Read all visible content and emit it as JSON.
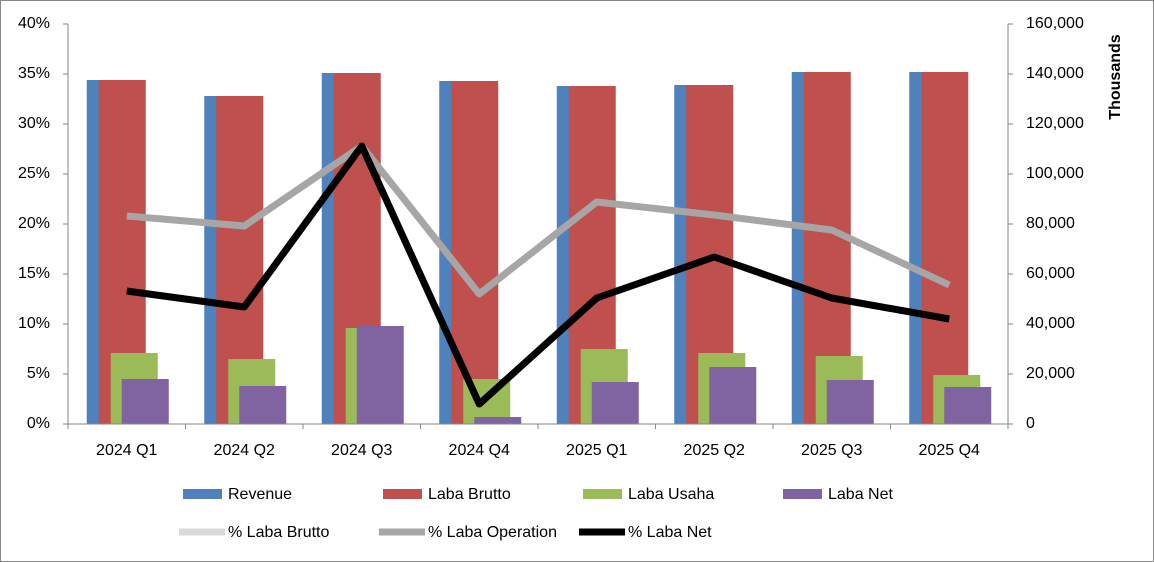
{
  "chart_data": {
    "type": "bar",
    "categories": [
      "2024 Q1",
      "2024 Q2",
      "2024 Q3",
      "2024 Q4",
      "2025 Q1",
      "2025 Q2",
      "2025 Q3",
      "2025 Q4"
    ],
    "series": [
      {
        "name": "Revenue",
        "type": "bar",
        "axis": "y2",
        "color": "#4f81bd",
        "values": [
          137600,
          131200,
          140400,
          137200,
          135200,
          135600,
          140800,
          140800
        ]
      },
      {
        "name": "Laba Brutto",
        "type": "bar",
        "axis": "y2",
        "color": "#c0504d",
        "values": [
          137600,
          131200,
          140400,
          137200,
          135200,
          135600,
          140800,
          140800
        ]
      },
      {
        "name": "Laba Usaha",
        "type": "bar",
        "axis": "y2",
        "color": "#9bbb59",
        "values": [
          28400,
          26000,
          38400,
          18000,
          30000,
          28400,
          27200,
          19600
        ]
      },
      {
        "name": "Laba Net",
        "type": "bar",
        "axis": "y2",
        "color": "#8064a2",
        "values": [
          18000,
          15200,
          39200,
          2800,
          16800,
          22800,
          17600,
          14800
        ]
      },
      {
        "name": "% Laba Brutto",
        "type": "line",
        "color": "#d9d9d9",
        "values": [
          null,
          null,
          null,
          null,
          null,
          null,
          null,
          null
        ]
      },
      {
        "name": "% Laba Operation",
        "type": "line",
        "color": "#a6a6a6",
        "values": [
          20.8,
          19.8,
          27.8,
          13.0,
          22.2,
          20.9,
          19.4,
          13.9
        ]
      },
      {
        "name": "% Laba Net",
        "type": "line",
        "color": "#000000",
        "values": [
          13.3,
          11.7,
          27.8,
          2.0,
          12.6,
          16.7,
          12.6,
          10.5
        ]
      }
    ],
    "ylim": [
      0,
      40
    ],
    "yticks": [
      {
        "value": 0,
        "label": "0%"
      },
      {
        "value": 5,
        "label": "5%"
      },
      {
        "value": 10,
        "label": "10%"
      },
      {
        "value": 15,
        "label": "15%"
      },
      {
        "value": 20,
        "label": "20%"
      },
      {
        "value": 25,
        "label": "25%"
      },
      {
        "value": 30,
        "label": "30%"
      },
      {
        "value": 35,
        "label": "35%"
      },
      {
        "value": 40,
        "label": "40%"
      }
    ],
    "y2lim": [
      0,
      160000
    ],
    "y2ticks": [
      0,
      {
        "value": 20000,
        "label": "20,000"
      },
      {
        "value": 40000,
        "label": "40,000"
      },
      {
        "value": 60000,
        "label": "60,000"
      },
      {
        "value": 80000,
        "label": "80,000"
      },
      {
        "value": 100000,
        "label": "100,000"
      },
      {
        "value": 120000,
        "label": "120,000"
      },
      {
        "value": 140000,
        "label": "140,000"
      },
      {
        "value": 160000,
        "label": "160,000"
      }
    ],
    "y2label": "Thousands",
    "grid": false
  }
}
